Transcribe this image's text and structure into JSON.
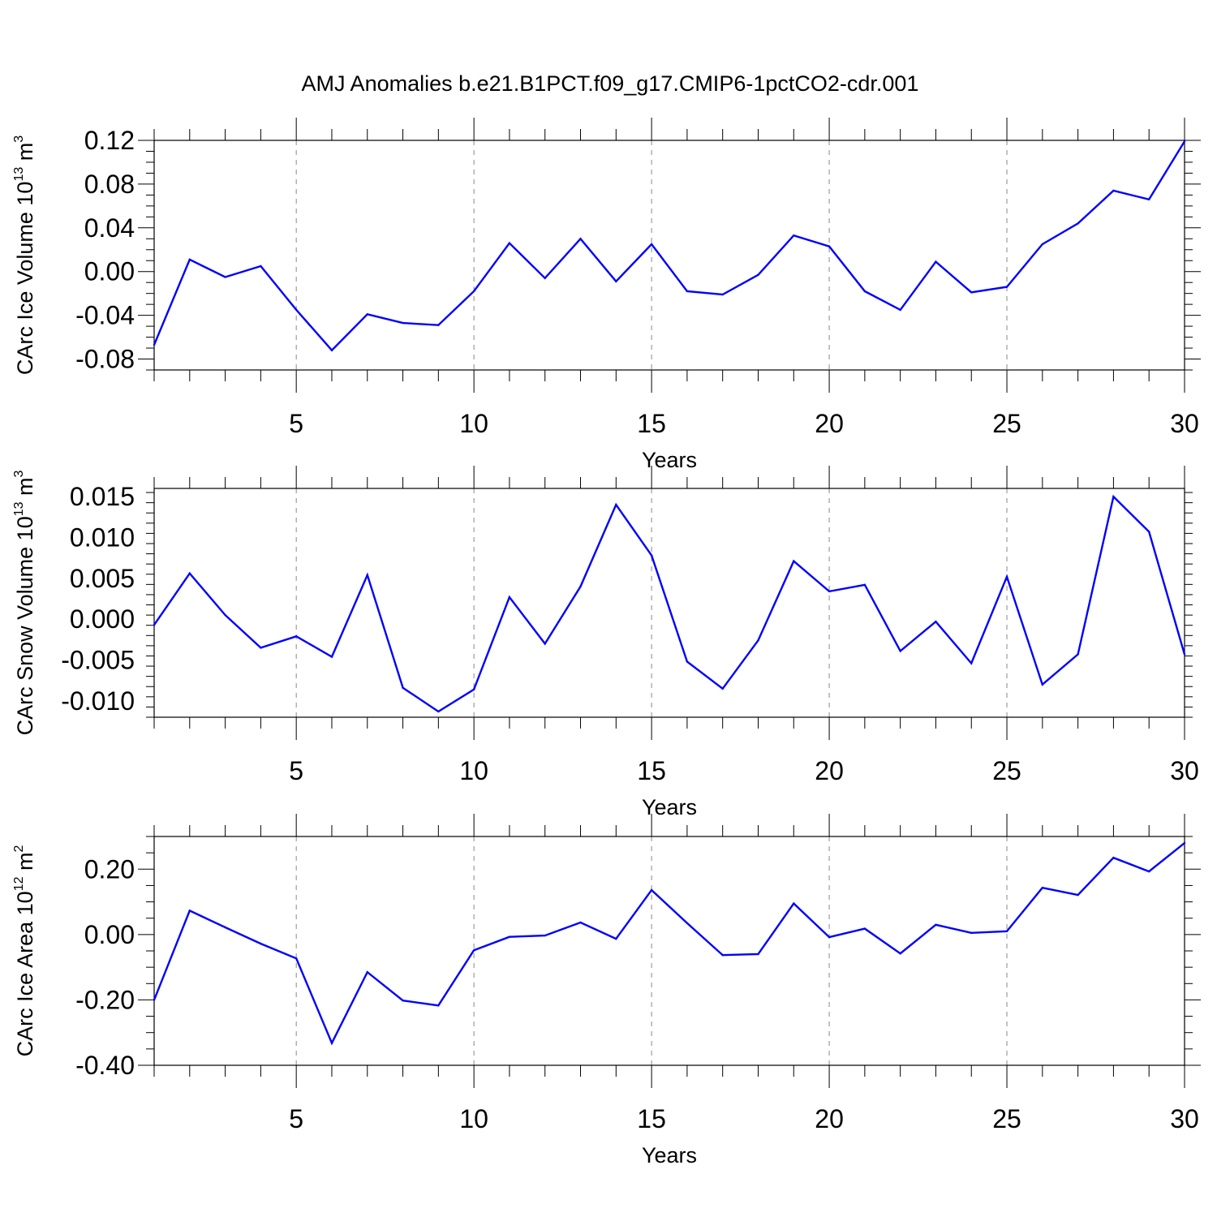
{
  "title": "AMJ Anomalies b.e21.B1PCT.f09_g17.CMIP6-1pctCO2-cdr.001",
  "colors": {
    "line": "#0000ff",
    "axis": "#000000",
    "grid": "#888888"
  },
  "chart_data": [
    {
      "type": "line",
      "ylabel": {
        "text": "CArc Ice Volume 10",
        "exp": "13",
        "unit": " m",
        "unit_exp": "3"
      },
      "xlabel": "Years",
      "xlim": [
        1,
        30
      ],
      "ylim": [
        -0.09,
        0.12
      ],
      "xticks": [
        5,
        10,
        15,
        20,
        25,
        30
      ],
      "xtick_labels": [
        "5",
        "10",
        "15",
        "20",
        "25",
        "30"
      ],
      "yticks": [
        -0.08,
        -0.04,
        0.0,
        0.04,
        0.08,
        0.12
      ],
      "ytick_labels": [
        "-0.08",
        "-0.04",
        "0.00",
        "0.04",
        "0.08",
        "0.12"
      ],
      "grid": "vertical-dashed",
      "series": [
        {
          "name": "CArc Ice Volume",
          "x": [
            1,
            2,
            3,
            4,
            5,
            6,
            7,
            8,
            9,
            10,
            11,
            12,
            13,
            14,
            15,
            16,
            17,
            18,
            19,
            20,
            21,
            22,
            23,
            24,
            25,
            26,
            27,
            28,
            29,
            30
          ],
          "values": [
            -0.067,
            0.011,
            -0.005,
            0.005,
            -0.035,
            -0.072,
            -0.039,
            -0.047,
            -0.049,
            -0.018,
            0.026,
            -0.006,
            0.03,
            -0.009,
            0.025,
            -0.018,
            -0.021,
            -0.003,
            0.033,
            0.023,
            -0.018,
            -0.035,
            0.009,
            -0.019,
            -0.014,
            0.025,
            0.044,
            0.074,
            0.066,
            0.119
          ]
        }
      ]
    },
    {
      "type": "line",
      "ylabel": {
        "text": "CArc Snow Volume 10",
        "exp": "13",
        "unit": " m",
        "unit_exp": "3"
      },
      "xlabel": "Years",
      "xlim": [
        1,
        30
      ],
      "ylim": [
        -0.012,
        0.016
      ],
      "xticks": [
        5,
        10,
        15,
        20,
        25,
        30
      ],
      "xtick_labels": [
        "5",
        "10",
        "15",
        "20",
        "25",
        "30"
      ],
      "yticks": [
        -0.01,
        -0.005,
        0.0,
        0.005,
        0.01,
        0.015
      ],
      "ytick_labels": [
        "-0.010",
        "-0.005",
        "0.000",
        "0.005",
        "0.010",
        "0.015"
      ],
      "grid": "vertical-dashed",
      "series": [
        {
          "name": "CArc Snow Volume",
          "x": [
            1,
            2,
            3,
            4,
            5,
            6,
            7,
            8,
            9,
            10,
            11,
            12,
            13,
            14,
            15,
            16,
            17,
            18,
            19,
            20,
            21,
            22,
            23,
            24,
            25,
            26,
            27,
            28,
            29,
            30
          ],
          "values": [
            -0.0007,
            0.0056,
            0.0005,
            -0.0035,
            -0.0021,
            -0.0046,
            0.0054,
            -0.0084,
            -0.0113,
            -0.0086,
            0.0027,
            -0.003,
            0.004,
            0.014,
            0.0078,
            -0.0052,
            -0.0085,
            -0.0026,
            0.0071,
            0.0034,
            0.0042,
            -0.0039,
            -0.0003,
            -0.0054,
            0.0052,
            -0.008,
            -0.0043,
            0.015,
            0.0107,
            -0.0043
          ]
        }
      ]
    },
    {
      "type": "line",
      "ylabel": {
        "text": "CArc Ice Area 10",
        "exp": "12",
        "unit": " m",
        "unit_exp": "2"
      },
      "xlabel": "Years",
      "xlim": [
        1,
        30
      ],
      "ylim": [
        -0.4,
        0.3
      ],
      "xticks": [
        5,
        10,
        15,
        20,
        25,
        30
      ],
      "xtick_labels": [
        "5",
        "10",
        "15",
        "20",
        "25",
        "30"
      ],
      "yticks": [
        -0.4,
        -0.2,
        0.0,
        0.2
      ],
      "ytick_labels": [
        "-0.40",
        "-0.20",
        "0.00",
        "0.20"
      ],
      "grid": "vertical-dashed",
      "series": [
        {
          "name": "CArc Ice Area",
          "x": [
            1,
            2,
            3,
            4,
            5,
            6,
            7,
            8,
            9,
            10,
            11,
            12,
            13,
            14,
            15,
            16,
            17,
            18,
            19,
            20,
            21,
            22,
            23,
            24,
            25,
            26,
            27,
            28,
            29,
            30
          ],
          "values": [
            -0.2,
            0.073,
            0.022,
            -0.028,
            -0.073,
            -0.332,
            -0.115,
            -0.202,
            -0.217,
            -0.048,
            -0.007,
            -0.003,
            0.037,
            -0.013,
            0.136,
            0.035,
            -0.063,
            -0.06,
            0.095,
            -0.008,
            0.018,
            -0.058,
            0.03,
            0.005,
            0.01,
            0.143,
            0.121,
            0.235,
            0.193,
            0.28
          ]
        }
      ]
    }
  ]
}
